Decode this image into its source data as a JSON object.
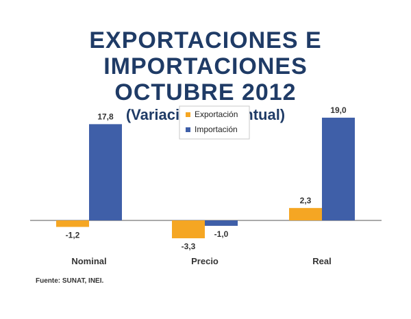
{
  "title": {
    "line1": "EXPORTACIONES E IMPORTACIONES",
    "line2": "OCTUBRE 2012",
    "subtitle": "(Variación Porcentual)"
  },
  "source": "Fuente: SUNAT, INEI.",
  "chart_data": {
    "type": "bar",
    "categories": [
      "Nominal",
      "Precio",
      "Real"
    ],
    "series": [
      {
        "name": "Exportación",
        "values": [
          -1.2,
          -3.3,
          2.3
        ],
        "labels": [
          "-1,2",
          "-3,3",
          "2,3"
        ],
        "color": "#f5a623"
      },
      {
        "name": "Importación",
        "values": [
          17.8,
          -1.0,
          19.0
        ],
        "labels": [
          "17,8",
          "-1,0",
          "19,0"
        ],
        "color": "#3f5fa8"
      }
    ],
    "ylim": [
      -3.3,
      19.0
    ],
    "legend_position": "top-center",
    "grid": false
  }
}
